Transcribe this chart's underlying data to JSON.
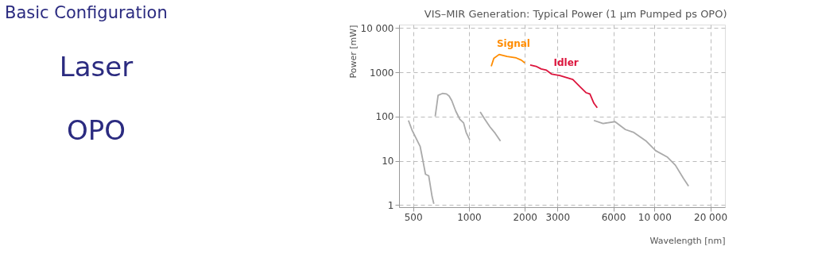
{
  "chart_data": [
    {
      "type": "other",
      "title": "Basic Configuration",
      "annotations": [
        "Laser",
        "OPO"
      ]
    },
    {
      "type": "line",
      "title": "VIS–MIR Generation: Typical Power (1 µm Pumped ps OPO)",
      "xlabel": "Wavelength [nm]",
      "ylabel": "Power [mW]",
      "log": "xy",
      "grid": true,
      "xlim": [
        420,
        24000
      ],
      "ylim": [
        0.9,
        12000
      ],
      "xticks": [
        500,
        1000,
        2000,
        3000,
        6000,
        {
          "value": 10000,
          "label": "10 000"
        },
        {
          "value": 20000,
          "label": "20 000"
        }
      ],
      "yticks": [
        1,
        10,
        100,
        1000,
        {
          "value": 10000,
          "label": "10 000"
        }
      ],
      "series": [
        {
          "color": "#aaaaaa",
          "x": [
            472,
            495,
            546,
            564,
            583,
            607,
            633,
            647
          ],
          "values": [
            82,
            48,
            21,
            10.5,
            5,
            4.6,
            1.55,
            1.07
          ]
        },
        {
          "color": "#aaaaaa",
          "x": [
            658,
            682,
            720,
            757,
            782,
            808,
            849,
            892,
            936,
            966,
            1010
          ],
          "values": [
            101,
            303,
            334,
            325,
            291,
            230,
            133,
            88,
            72,
            44,
            29.5
          ]
        },
        {
          "color": "#aaaaaa",
          "x": [
            1150,
            1216,
            1297,
            1385,
            1479
          ],
          "values": [
            128,
            88,
            59,
            42,
            28
          ]
        },
        {
          "name": "Signal",
          "color": "#ff8c00",
          "x": [
            1319,
            1362,
            1455,
            1605,
            1799,
            1920,
            2000
          ],
          "values": [
            1370,
            2070,
            2540,
            2280,
            2120,
            1880,
            1640
          ]
        },
        {
          "name": "Idler",
          "color": "#dc143c",
          "x": [
            2138,
            2299,
            2452,
            2618,
            2796,
            3085,
            3400,
            3630,
            4002,
            4274,
            4490,
            4716,
            4916
          ],
          "values": [
            1466,
            1372,
            1194,
            1117,
            910,
            849,
            750,
            691,
            458,
            348,
            325,
            201,
            159
          ]
        },
        {
          "color": "#aaaaaa",
          "x": [
            4716,
            5285,
            6126,
            6977,
            7694,
            9056,
            10160,
            11760,
            12970,
            14310,
            15270
          ],
          "values": [
            82,
            70,
            77,
            51,
            44.5,
            27.6,
            17,
            12.1,
            8.0,
            4.05,
            2.7
          ]
        }
      ]
    }
  ]
}
